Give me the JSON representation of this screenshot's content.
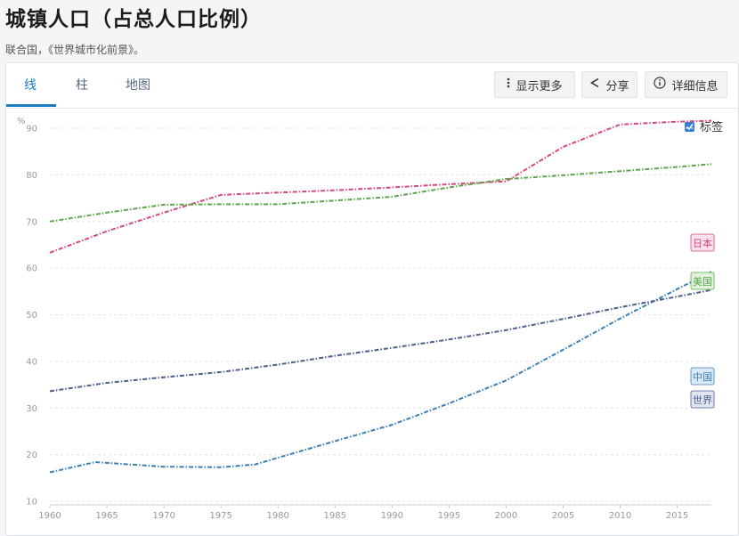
{
  "page": {
    "title": "城镇人口（占总人口比例）",
    "source": "联合国，《世界城市化前景》。"
  },
  "tabs": [
    {
      "label": "线",
      "active": true
    },
    {
      "label": "柱",
      "active": false
    },
    {
      "label": "地图",
      "active": false
    }
  ],
  "toolbar": {
    "more_label": "显示更多",
    "share_label": "分享",
    "details_label": "详细信息"
  },
  "labels_toggle": {
    "label": "标签",
    "checked": true
  },
  "chart_data": {
    "type": "line",
    "title": "",
    "xlabel": "",
    "ylabel": "%",
    "xlim": [
      1960,
      2018
    ],
    "ylim": [
      10,
      90
    ],
    "xticks": [
      1960,
      1965,
      1970,
      1975,
      1980,
      1985,
      1990,
      1995,
      2000,
      2005,
      2010,
      2015
    ],
    "yticks": [
      10,
      20,
      30,
      40,
      50,
      60,
      70,
      80,
      90
    ],
    "grid": true,
    "series": [
      {
        "name": "日本",
        "color": "#d6477f",
        "points": [
          [
            1960,
            63.3
          ],
          [
            1965,
            67.9
          ],
          [
            1970,
            71.9
          ],
          [
            1975,
            75.7
          ],
          [
            1980,
            76.2
          ],
          [
            1985,
            76.7
          ],
          [
            1990,
            77.3
          ],
          [
            1995,
            78.0
          ],
          [
            2000,
            78.6
          ],
          [
            2005,
            86.0
          ],
          [
            2010,
            90.8
          ],
          [
            2015,
            91.4
          ],
          [
            2018,
            91.6
          ]
        ]
      },
      {
        "name": "美国",
        "color": "#5aa64a",
        "points": [
          [
            1960,
            70.0
          ],
          [
            1965,
            71.9
          ],
          [
            1970,
            73.6
          ],
          [
            1975,
            73.7
          ],
          [
            1980,
            73.7
          ],
          [
            1985,
            74.5
          ],
          [
            1990,
            75.3
          ],
          [
            1995,
            77.3
          ],
          [
            2000,
            79.1
          ],
          [
            2005,
            79.9
          ],
          [
            2010,
            80.8
          ],
          [
            2015,
            81.7
          ],
          [
            2018,
            82.3
          ]
        ]
      },
      {
        "name": "中国",
        "color": "#3a7fb5",
        "points": [
          [
            1960,
            16.2
          ],
          [
            1964,
            18.4
          ],
          [
            1970,
            17.4
          ],
          [
            1975,
            17.3
          ],
          [
            1978,
            17.9
          ],
          [
            1985,
            22.9
          ],
          [
            1990,
            26.4
          ],
          [
            1995,
            31.0
          ],
          [
            2000,
            35.9
          ],
          [
            2005,
            42.5
          ],
          [
            2010,
            49.2
          ],
          [
            2015,
            55.5
          ],
          [
            2018,
            59.2
          ]
        ]
      },
      {
        "name": "世界",
        "color": "#4e5f8e",
        "points": [
          [
            1960,
            33.6
          ],
          [
            1965,
            35.4
          ],
          [
            1970,
            36.6
          ],
          [
            1975,
            37.7
          ],
          [
            1980,
            39.3
          ],
          [
            1985,
            41.2
          ],
          [
            1990,
            42.9
          ],
          [
            1995,
            44.7
          ],
          [
            2000,
            46.7
          ],
          [
            2005,
            49.1
          ],
          [
            2010,
            51.6
          ],
          [
            2015,
            53.9
          ],
          [
            2018,
            55.3
          ]
        ]
      }
    ]
  }
}
